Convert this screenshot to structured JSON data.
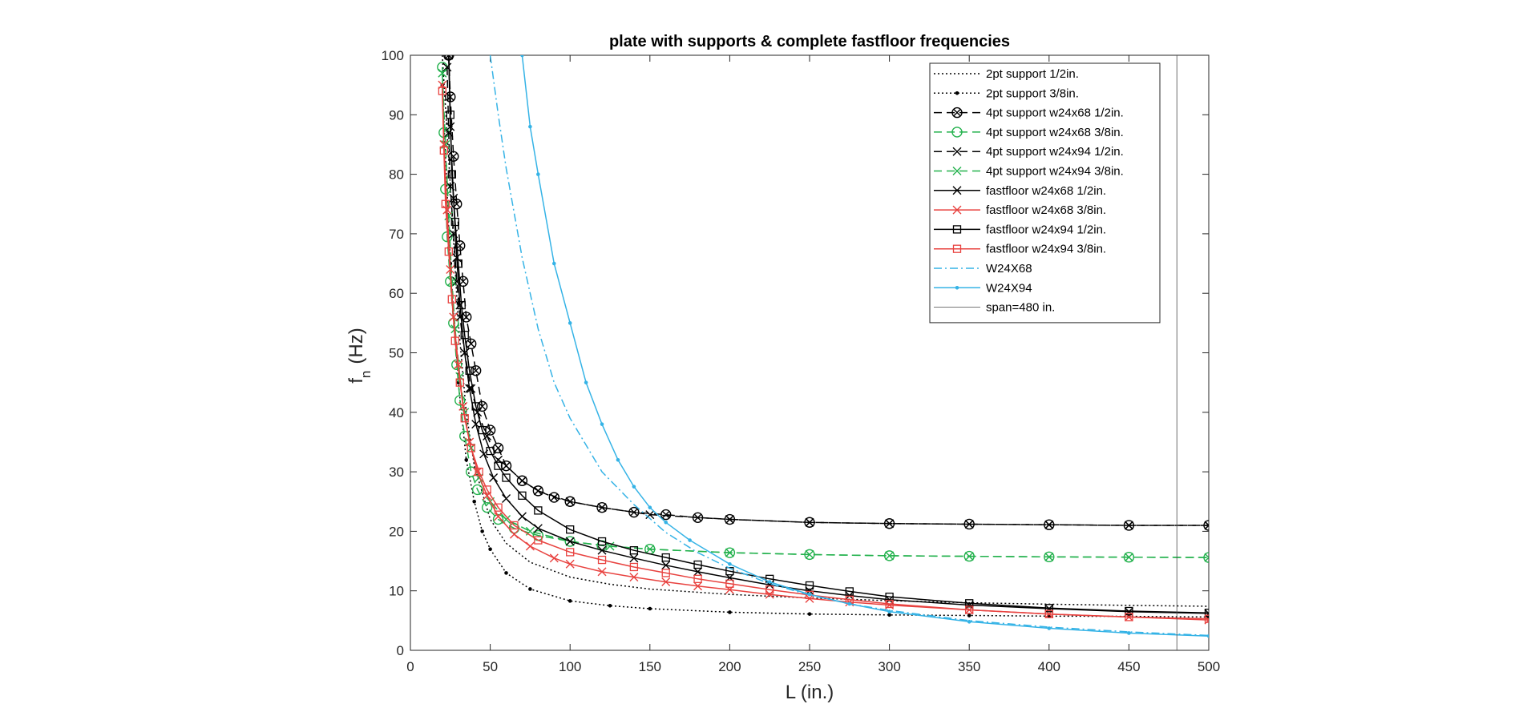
{
  "chart_data": {
    "type": "line",
    "title": "plate with supports & complete fastfloor frequencies",
    "xlabel": "L (in.)",
    "ylabel_main": "f",
    "ylabel_sub": "n",
    "ylabel_unit": "(Hz)",
    "xlim": [
      0,
      500
    ],
    "ylim": [
      0,
      100
    ],
    "xticks": [
      0,
      50,
      100,
      150,
      200,
      250,
      300,
      350,
      400,
      450,
      500
    ],
    "yticks": [
      0,
      10,
      20,
      30,
      40,
      50,
      60,
      70,
      80,
      90,
      100
    ],
    "grid": false,
    "legend_position": "top-right",
    "series": [
      {
        "name": "2pt support 1/2in.",
        "color": "#000000",
        "dash": "dotted",
        "marker": "none",
        "points": [
          [
            20,
            100
          ],
          [
            25,
            78
          ],
          [
            30,
            55
          ],
          [
            35,
            40
          ],
          [
            40,
            31
          ],
          [
            50,
            22
          ],
          [
            60,
            18
          ],
          [
            75,
            14.8
          ],
          [
            100,
            12.3
          ],
          [
            125,
            11.1
          ],
          [
            150,
            10.3
          ],
          [
            200,
            9.4
          ],
          [
            250,
            8.8
          ],
          [
            300,
            8.35
          ],
          [
            350,
            8.0
          ],
          [
            400,
            7.75
          ],
          [
            450,
            7.55
          ],
          [
            500,
            7.4
          ]
        ]
      },
      {
        "name": "2pt support 3/8in.",
        "color": "#000000",
        "dash": "dotted",
        "marker": "dot",
        "points": [
          [
            20,
            95
          ],
          [
            25,
            65
          ],
          [
            30,
            45
          ],
          [
            35,
            32
          ],
          [
            40,
            25
          ],
          [
            45,
            20
          ],
          [
            50,
            17
          ],
          [
            60,
            13
          ],
          [
            75,
            10.3
          ],
          [
            100,
            8.3
          ],
          [
            125,
            7.5
          ],
          [
            150,
            7.0
          ],
          [
            200,
            6.4
          ],
          [
            250,
            6.1
          ],
          [
            300,
            5.95
          ],
          [
            350,
            5.85
          ],
          [
            400,
            5.75
          ],
          [
            450,
            5.7
          ],
          [
            500,
            5.6
          ]
        ]
      },
      {
        "name": "4pt support w24x68 1/2in.",
        "color": "#000000",
        "dash": "dashed",
        "marker": "circle-x",
        "points": [
          [
            24,
            100
          ],
          [
            25,
            93
          ],
          [
            27,
            83
          ],
          [
            29,
            75
          ],
          [
            31,
            68
          ],
          [
            33,
            62
          ],
          [
            35,
            56
          ],
          [
            38,
            51.5
          ],
          [
            41,
            47
          ],
          [
            45,
            41
          ],
          [
            50,
            37
          ],
          [
            55,
            34
          ],
          [
            60,
            31
          ],
          [
            70,
            28.5
          ],
          [
            80,
            26.8
          ],
          [
            90,
            25.7
          ],
          [
            100,
            25
          ],
          [
            120,
            24
          ],
          [
            140,
            23.2
          ],
          [
            160,
            22.8
          ],
          [
            180,
            22.3
          ],
          [
            200,
            22
          ],
          [
            250,
            21.5
          ],
          [
            300,
            21.3
          ],
          [
            350,
            21.2
          ],
          [
            400,
            21.1
          ],
          [
            450,
            21
          ],
          [
            500,
            21
          ]
        ]
      },
      {
        "name": "4pt support w24x68 3/8in.",
        "color": "#22b14c",
        "dash": "dashed",
        "marker": "circle",
        "points": [
          [
            20,
            98
          ],
          [
            21,
            87
          ],
          [
            22,
            77.5
          ],
          [
            23,
            69.5
          ],
          [
            25,
            62
          ],
          [
            27,
            55
          ],
          [
            29,
            48
          ],
          [
            31,
            42
          ],
          [
            34,
            36
          ],
          [
            38,
            30
          ],
          [
            42,
            27
          ],
          [
            48,
            24
          ],
          [
            55,
            22
          ],
          [
            65,
            20.5
          ],
          [
            80,
            19.3
          ],
          [
            100,
            18.3
          ],
          [
            120,
            17.6
          ],
          [
            150,
            17
          ],
          [
            200,
            16.4
          ],
          [
            250,
            16.1
          ],
          [
            300,
            15.9
          ],
          [
            350,
            15.8
          ],
          [
            400,
            15.7
          ],
          [
            450,
            15.65
          ],
          [
            500,
            15.6
          ]
        ]
      },
      {
        "name": "4pt support w24x94 1/2in.",
        "color": "#000000",
        "dash": "dashed",
        "marker": "x",
        "points": [
          [
            23,
            98
          ],
          [
            24,
            87
          ],
          [
            25,
            78
          ],
          [
            27,
            70
          ],
          [
            29,
            62
          ],
          [
            31,
            56
          ],
          [
            34,
            50
          ],
          [
            38,
            44
          ],
          [
            42,
            40
          ],
          [
            48,
            36
          ],
          [
            55,
            32
          ],
          [
            60,
            31
          ],
          [
            70,
            28.5
          ],
          [
            80,
            26.8
          ],
          [
            100,
            25
          ],
          [
            120,
            24
          ],
          [
            150,
            22.8
          ],
          [
            200,
            22
          ],
          [
            250,
            21.5
          ],
          [
            300,
            21.3
          ],
          [
            350,
            21.2
          ],
          [
            400,
            21.1
          ],
          [
            450,
            21
          ],
          [
            500,
            21
          ]
        ]
      },
      {
        "name": "4pt support w24x94 3/8in.",
        "color": "#22b14c",
        "dash": "dashed",
        "marker": "x",
        "points": [
          [
            20,
            97
          ],
          [
            22,
            85
          ],
          [
            24,
            73
          ],
          [
            26,
            62
          ],
          [
            28,
            54
          ],
          [
            31,
            46
          ],
          [
            34,
            40
          ],
          [
            38,
            34
          ],
          [
            43,
            29
          ],
          [
            50,
            25
          ],
          [
            60,
            22
          ],
          [
            75,
            20
          ],
          [
            100,
            18.3
          ],
          [
            125,
            17.5
          ],
          [
            150,
            17
          ],
          [
            200,
            16.4
          ],
          [
            250,
            16.1
          ],
          [
            300,
            15.9
          ],
          [
            350,
            15.8
          ],
          [
            400,
            15.7
          ],
          [
            450,
            15.65
          ],
          [
            500,
            15.6
          ]
        ]
      },
      {
        "name": "fastfloor w24x68 1/2in.",
        "color": "#000000",
        "dash": "solid",
        "marker": "x",
        "points": [
          [
            24,
            100
          ],
          [
            25,
            88
          ],
          [
            27,
            76
          ],
          [
            29,
            66
          ],
          [
            31,
            58
          ],
          [
            34,
            50
          ],
          [
            37,
            44
          ],
          [
            41,
            38
          ],
          [
            46,
            33
          ],
          [
            52,
            29
          ],
          [
            60,
            25.5
          ],
          [
            70,
            22.5
          ],
          [
            80,
            20.5
          ],
          [
            100,
            18.3
          ],
          [
            120,
            16.8
          ],
          [
            140,
            15.5
          ],
          [
            160,
            14.3
          ],
          [
            180,
            13.2
          ],
          [
            200,
            12.2
          ],
          [
            225,
            11
          ],
          [
            250,
            10
          ],
          [
            275,
            9.2
          ],
          [
            300,
            8.5
          ],
          [
            350,
            7.6
          ],
          [
            400,
            7.0
          ],
          [
            450,
            6.5
          ],
          [
            500,
            6.2
          ]
        ]
      },
      {
        "name": "fastfloor w24x68 3/8in.",
        "color": "#e8423f",
        "dash": "solid",
        "marker": "x",
        "points": [
          [
            20,
            95
          ],
          [
            21,
            85
          ],
          [
            23,
            74
          ],
          [
            25,
            64
          ],
          [
            27,
            56
          ],
          [
            30,
            48
          ],
          [
            33,
            41
          ],
          [
            37,
            35
          ],
          [
            42,
            30
          ],
          [
            48,
            26
          ],
          [
            55,
            22.5
          ],
          [
            65,
            19.5
          ],
          [
            75,
            17.5
          ],
          [
            90,
            15.5
          ],
          [
            100,
            14.5
          ],
          [
            120,
            13.2
          ],
          [
            140,
            12.3
          ],
          [
            160,
            11.5
          ],
          [
            180,
            10.8
          ],
          [
            200,
            10.2
          ],
          [
            225,
            9.4
          ],
          [
            250,
            8.7
          ],
          [
            275,
            8.1
          ],
          [
            300,
            7.6
          ],
          [
            350,
            6.8
          ],
          [
            400,
            6.1
          ],
          [
            450,
            5.6
          ],
          [
            500,
            5.1
          ]
        ]
      },
      {
        "name": "fastfloor w24x94 1/2in.",
        "color": "#000000",
        "dash": "solid",
        "marker": "square",
        "points": [
          [
            24,
            100
          ],
          [
            25,
            90
          ],
          [
            26,
            80
          ],
          [
            28,
            72
          ],
          [
            30,
            65
          ],
          [
            32,
            58
          ],
          [
            34,
            53
          ],
          [
            37,
            47
          ],
          [
            41,
            41
          ],
          [
            45,
            37
          ],
          [
            50,
            33.5
          ],
          [
            55,
            31
          ],
          [
            60,
            29
          ],
          [
            70,
            26
          ],
          [
            80,
            23.5
          ],
          [
            100,
            20.3
          ],
          [
            120,
            18.3
          ],
          [
            140,
            16.8
          ],
          [
            160,
            15.6
          ],
          [
            180,
            14.4
          ],
          [
            200,
            13.3
          ],
          [
            225,
            12
          ],
          [
            250,
            10.9
          ],
          [
            275,
            9.9
          ],
          [
            300,
            9.0
          ],
          [
            350,
            7.9
          ],
          [
            400,
            7.1
          ],
          [
            450,
            6.6
          ],
          [
            500,
            6.3
          ]
        ]
      },
      {
        "name": "fastfloor w24x94 3/8in.",
        "color": "#e8423f",
        "dash": "solid",
        "marker": "square",
        "points": [
          [
            20,
            94
          ],
          [
            21,
            84
          ],
          [
            22,
            75
          ],
          [
            24,
            67
          ],
          [
            26,
            59
          ],
          [
            28,
            52
          ],
          [
            31,
            45
          ],
          [
            34,
            39
          ],
          [
            38,
            34
          ],
          [
            43,
            30
          ],
          [
            48,
            27
          ],
          [
            55,
            24
          ],
          [
            65,
            21
          ],
          [
            80,
            18.5
          ],
          [
            100,
            16.5
          ],
          [
            120,
            15.2
          ],
          [
            140,
            14
          ],
          [
            160,
            13
          ],
          [
            180,
            12
          ],
          [
            200,
            11.2
          ],
          [
            225,
            10.2
          ],
          [
            250,
            9.3
          ],
          [
            275,
            8.5
          ],
          [
            300,
            7.8
          ],
          [
            350,
            6.8
          ],
          [
            400,
            6.1
          ],
          [
            450,
            5.6
          ],
          [
            500,
            5.3
          ]
        ]
      },
      {
        "name": "W24X68",
        "color": "#35b3e6",
        "dash": "dashdot",
        "marker": "none",
        "points": [
          [
            50,
            100
          ],
          [
            55,
            90
          ],
          [
            60,
            81
          ],
          [
            70,
            66
          ],
          [
            80,
            54
          ],
          [
            90,
            45
          ],
          [
            100,
            39
          ],
          [
            120,
            30
          ],
          [
            140,
            24.5
          ],
          [
            160,
            19.8
          ],
          [
            180,
            16.4
          ],
          [
            200,
            13.8
          ],
          [
            225,
            11.2
          ],
          [
            250,
            9.3
          ],
          [
            275,
            7.8
          ],
          [
            300,
            6.7
          ],
          [
            350,
            5.0
          ],
          [
            400,
            3.9
          ],
          [
            450,
            3.1
          ],
          [
            500,
            2.5
          ]
        ]
      },
      {
        "name": "W24X94",
        "color": "#35b3e6",
        "dash": "solid",
        "marker": "dot",
        "points": [
          [
            70,
            100
          ],
          [
            75,
            88
          ],
          [
            80,
            80
          ],
          [
            90,
            65
          ],
          [
            100,
            55
          ],
          [
            110,
            45
          ],
          [
            120,
            38
          ],
          [
            130,
            32
          ],
          [
            140,
            27.5
          ],
          [
            150,
            24
          ],
          [
            160,
            21.5
          ],
          [
            175,
            18.5
          ],
          [
            200,
            14.5
          ],
          [
            225,
            11.5
          ],
          [
            250,
            9.4
          ],
          [
            275,
            7.8
          ],
          [
            300,
            6.5
          ],
          [
            350,
            4.8
          ],
          [
            400,
            3.7
          ],
          [
            450,
            2.9
          ],
          [
            500,
            2.4
          ]
        ]
      },
      {
        "name": "span=480 in.",
        "color": "#4a4a4a",
        "dash": "solid",
        "marker": "none",
        "thin": true,
        "points": [
          [
            480,
            0
          ],
          [
            480,
            100
          ]
        ]
      }
    ]
  }
}
